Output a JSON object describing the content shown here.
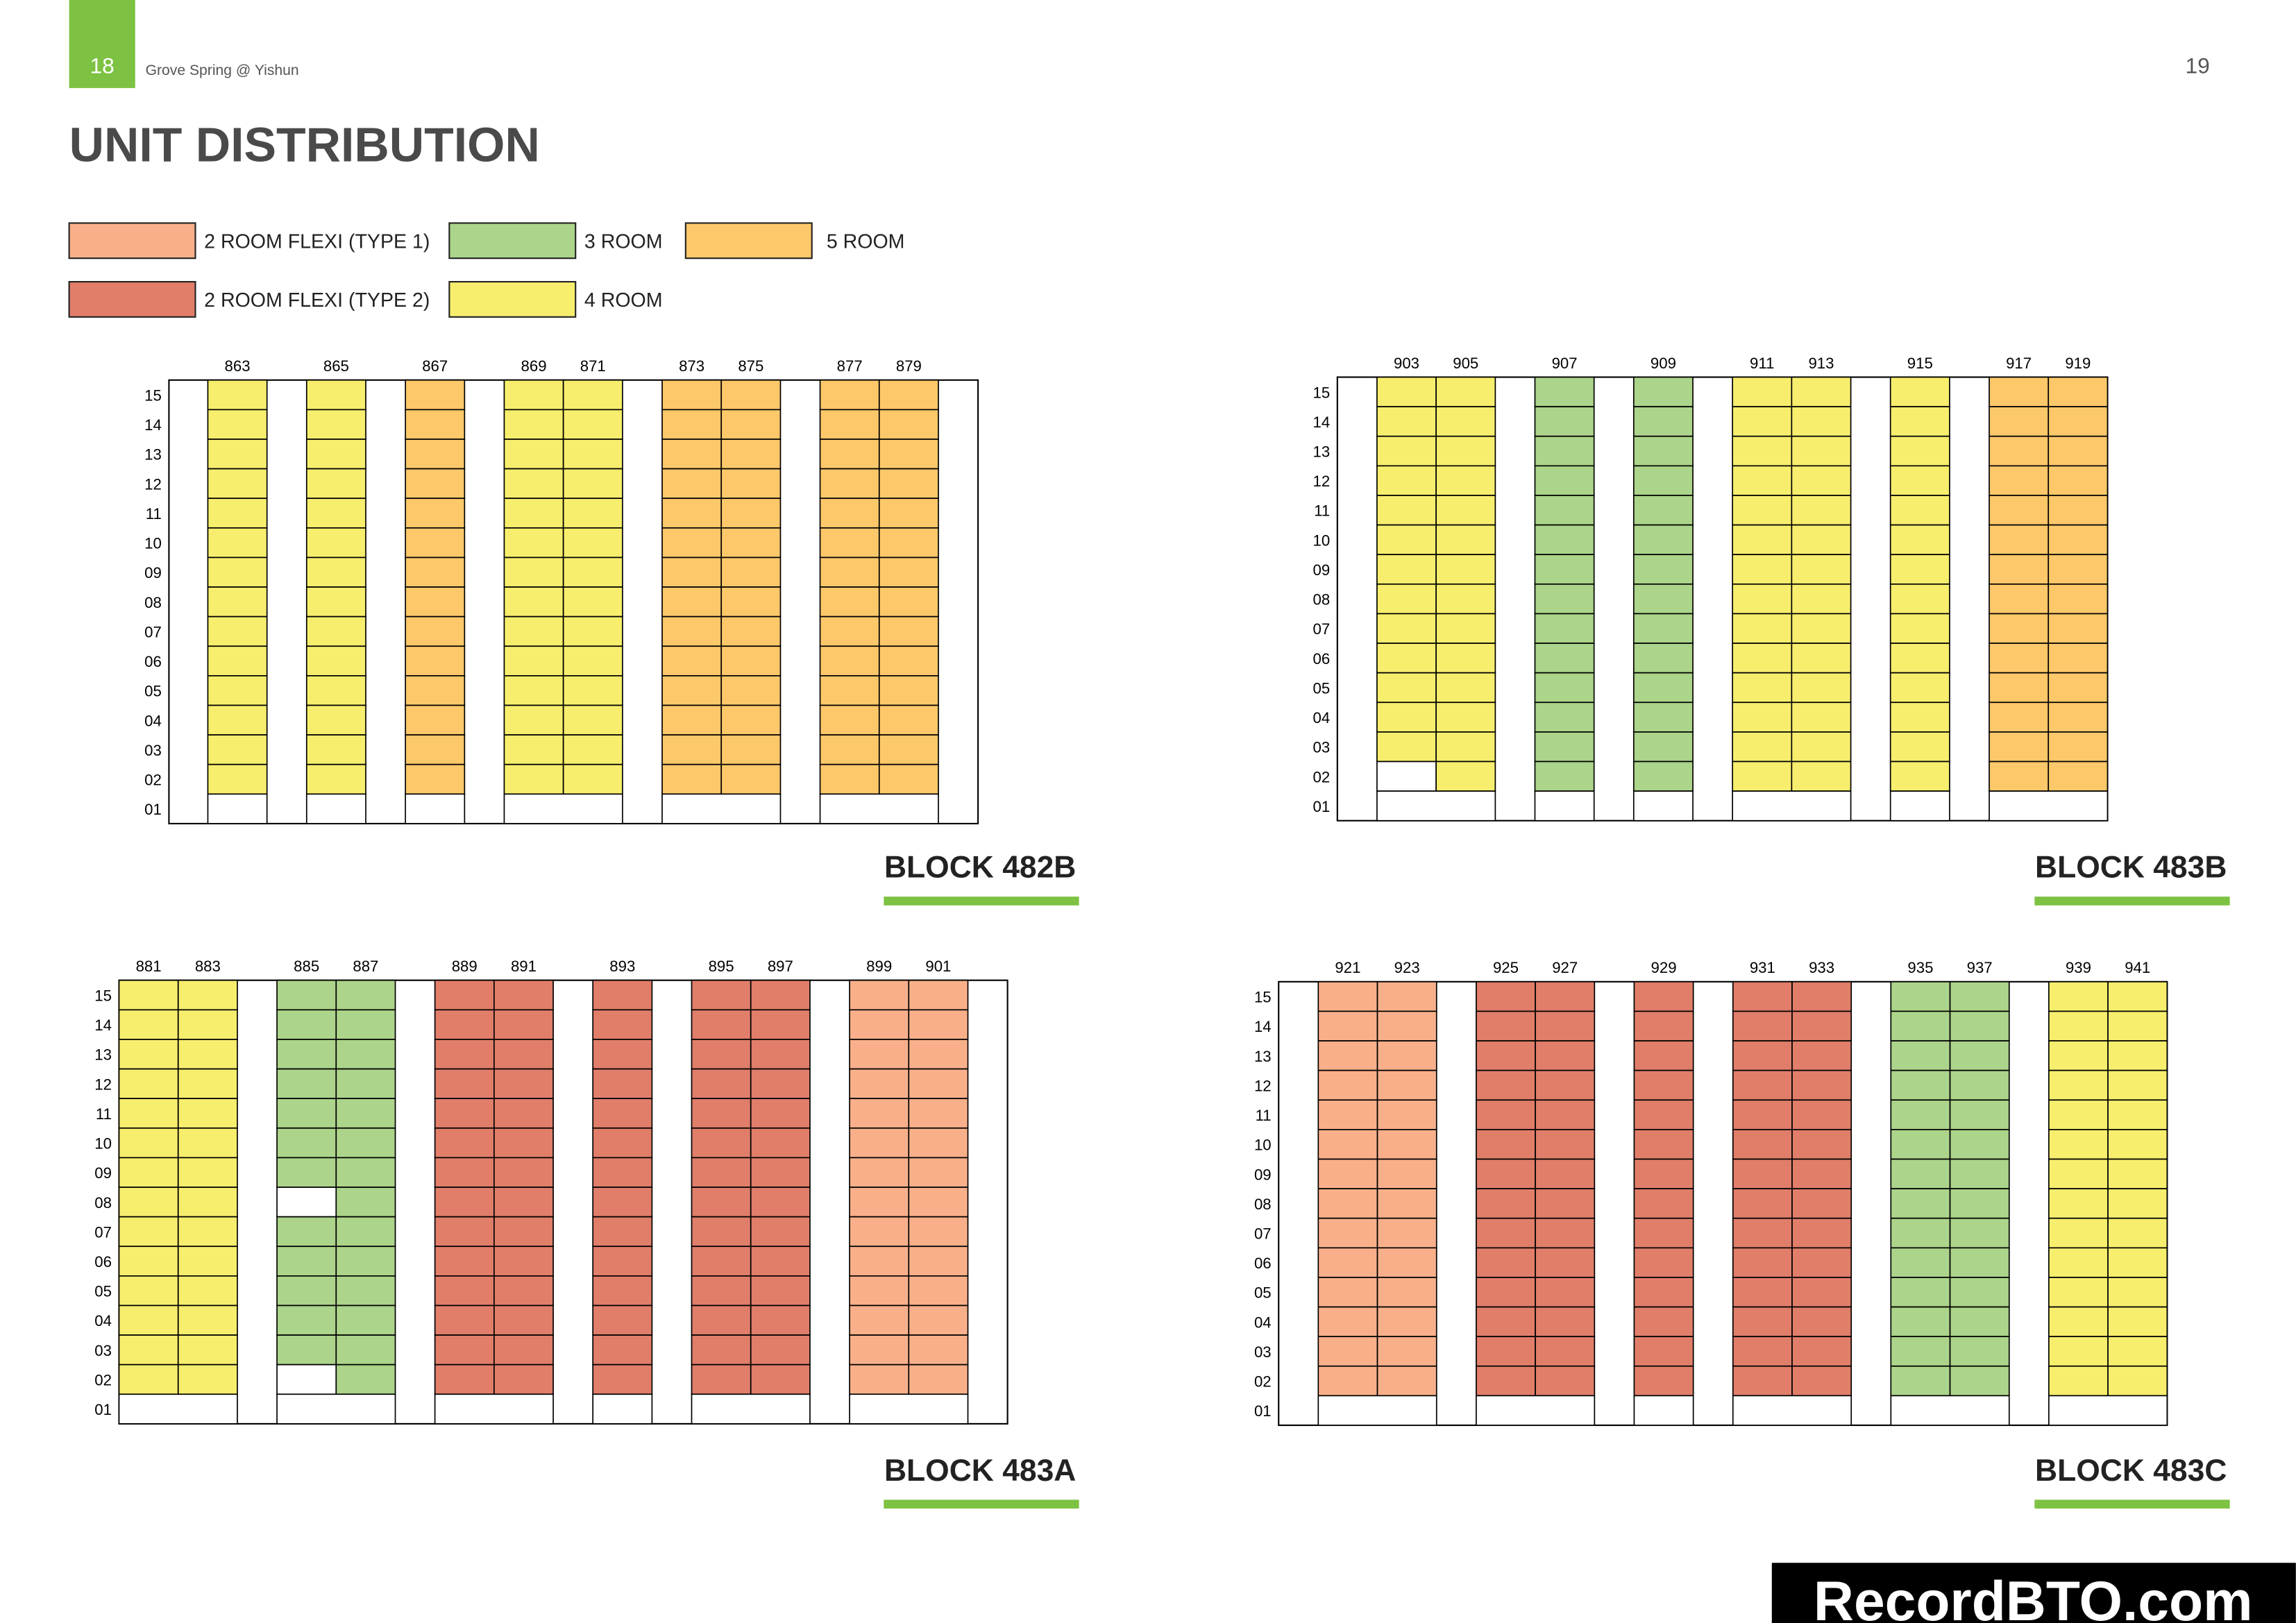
{
  "header": {
    "page_left": "18",
    "brand": "Grove Spring @ Yishun",
    "page_right": "19"
  },
  "title": "UNIT DISTRIBUTION",
  "legend": [
    {
      "label": "2 ROOM FLEXI (TYPE 1)",
      "color": "#f9b08a"
    },
    {
      "label": "2 ROOM FLEXI (TYPE 2)",
      "color": "#e07e6a"
    },
    {
      "label": "3 ROOM",
      "color": "#acd48a"
    },
    {
      "label": "4 ROOM",
      "color": "#f7ee6e"
    },
    {
      "label": "5 ROOM",
      "color": "#fdc86a"
    }
  ],
  "floors": [
    "15",
    "14",
    "13",
    "12",
    "11",
    "10",
    "09",
    "08",
    "07",
    "06",
    "05",
    "04",
    "03",
    "02",
    "01"
  ],
  "blocks": [
    {
      "name": "BLOCK 482B",
      "groups": [
        [
          {
            "unit": "863",
            "type": "4 ROOM"
          }
        ],
        [
          {
            "unit": "865",
            "type": "4 ROOM"
          }
        ],
        [
          {
            "unit": "867",
            "type": "5 ROOM"
          }
        ],
        [
          {
            "unit": "869",
            "type": "4 ROOM"
          },
          {
            "unit": "871",
            "type": "4 ROOM"
          }
        ],
        [
          {
            "unit": "873",
            "type": "5 ROOM"
          },
          {
            "unit": "875",
            "type": "5 ROOM"
          }
        ],
        [
          {
            "unit": "877",
            "type": "5 ROOM"
          },
          {
            "unit": "879",
            "type": "5 ROOM"
          }
        ]
      ]
    },
    {
      "name": "BLOCK 483B",
      "groups": [
        [
          {
            "unit": "903",
            "type": "4 ROOM",
            "void_floors": [
              "02"
            ]
          },
          {
            "unit": "905",
            "type": "4 ROOM"
          }
        ],
        [
          {
            "unit": "907",
            "type": "3 ROOM"
          }
        ],
        [
          {
            "unit": "909",
            "type": "3 ROOM"
          }
        ],
        [
          {
            "unit": "911",
            "type": "4 ROOM"
          },
          {
            "unit": "913",
            "type": "4 ROOM"
          }
        ],
        [
          {
            "unit": "915",
            "type": "4 ROOM"
          }
        ],
        [
          {
            "unit": "917",
            "type": "5 ROOM"
          },
          {
            "unit": "919",
            "type": "5 ROOM"
          }
        ]
      ]
    },
    {
      "name": "BLOCK 483A",
      "groups": [
        [
          {
            "unit": "881",
            "type": "4 ROOM"
          },
          {
            "unit": "883",
            "type": "4 ROOM"
          }
        ],
        [
          {
            "unit": "885",
            "type": "3 ROOM",
            "void_floors": [
              "08",
              "02"
            ]
          },
          {
            "unit": "887",
            "type": "3 ROOM"
          }
        ],
        [
          {
            "unit": "889",
            "type": "2 ROOM FLEXI (TYPE 2)"
          },
          {
            "unit": "891",
            "type": "2 ROOM FLEXI (TYPE 2)"
          }
        ],
        [
          {
            "unit": "893",
            "type": "2 ROOM FLEXI (TYPE 2)"
          }
        ],
        [
          {
            "unit": "895",
            "type": "2 ROOM FLEXI (TYPE 2)"
          },
          {
            "unit": "897",
            "type": "2 ROOM FLEXI (TYPE 2)"
          }
        ],
        [
          {
            "unit": "899",
            "type": "2 ROOM FLEXI (TYPE 1)"
          },
          {
            "unit": "901",
            "type": "2 ROOM FLEXI (TYPE 1)"
          }
        ]
      ]
    },
    {
      "name": "BLOCK 483C",
      "groups": [
        [
          {
            "unit": "921",
            "type": "2 ROOM FLEXI (TYPE 1)"
          },
          {
            "unit": "923",
            "type": "2 ROOM FLEXI (TYPE 1)"
          }
        ],
        [
          {
            "unit": "925",
            "type": "2 ROOM FLEXI (TYPE 2)"
          },
          {
            "unit": "927",
            "type": "2 ROOM FLEXI (TYPE 2)"
          }
        ],
        [
          {
            "unit": "929",
            "type": "2 ROOM FLEXI (TYPE 2)"
          }
        ],
        [
          {
            "unit": "931",
            "type": "2 ROOM FLEXI (TYPE 2)"
          },
          {
            "unit": "933",
            "type": "2 ROOM FLEXI (TYPE 2)"
          }
        ],
        [
          {
            "unit": "935",
            "type": "3 ROOM"
          },
          {
            "unit": "937",
            "type": "3 ROOM"
          }
        ],
        [
          {
            "unit": "939",
            "type": "4 ROOM"
          },
          {
            "unit": "941",
            "type": "4 ROOM"
          }
        ]
      ]
    }
  ],
  "watermark": "RecordBTO.com"
}
